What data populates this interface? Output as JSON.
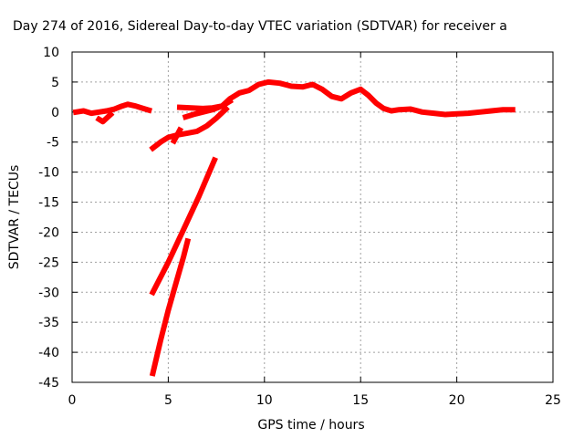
{
  "chart_data": {
    "type": "line",
    "title": "Day 274 of 2016, Sidereal Day-to-day VTEC variation (SDTVAR) for receiver a",
    "xlabel": "GPS time / hours",
    "ylabel": "SDTVAR / TECUs",
    "xlim": [
      0,
      25
    ],
    "ylim": [
      -45,
      10
    ],
    "xticks": [
      0,
      5,
      10,
      15,
      20,
      25
    ],
    "yticks": [
      10,
      5,
      0,
      -5,
      -10,
      -15,
      -20,
      -25,
      -30,
      -35,
      -40,
      -45
    ],
    "grid": true,
    "legend": "none",
    "color": "#ff0000",
    "series": [
      {
        "x": [
          0.2,
          0.6,
          1.0,
          1.4,
          1.8,
          2.2,
          2.6,
          2.9,
          3.3,
          3.7,
          4.0
        ],
        "y": [
          0.0,
          0.2,
          -0.2,
          0.0,
          0.2,
          0.5,
          1.0,
          1.3,
          1.0,
          0.6,
          0.3
        ]
      },
      {
        "x": [
          1.4,
          1.6,
          1.8,
          2.0
        ],
        "y": [
          -1.2,
          -1.6,
          -1.0,
          -0.4
        ]
      },
      {
        "x": [
          4.2,
          4.6,
          5.0,
          5.5,
          6.0,
          6.5,
          7.0,
          7.5,
          8.0
        ],
        "y": [
          -6.0,
          -5.0,
          -4.2,
          -3.8,
          -3.5,
          -3.2,
          -2.3,
          -1.0,
          0.5
        ]
      },
      {
        "x": [
          5.3,
          5.6
        ],
        "y": [
          -4.8,
          -3.0
        ]
      },
      {
        "x": [
          5.6,
          6.2,
          6.8,
          7.3,
          7.8,
          8.2,
          8.7,
          9.2,
          9.7,
          10.2,
          10.8,
          11.4,
          12.0,
          12.5,
          13.0,
          13.5,
          14.0,
          14.5,
          15.0,
          15.4,
          15.8,
          16.2,
          16.6,
          17.0,
          17.6,
          18.2,
          18.8,
          19.4,
          20.0,
          20.6,
          21.2,
          21.8,
          22.4,
          22.9
        ],
        "y": [
          0.8,
          0.7,
          0.6,
          0.7,
          1.0,
          2.2,
          3.2,
          3.6,
          4.6,
          5.0,
          4.8,
          4.3,
          4.2,
          4.6,
          3.8,
          2.6,
          2.2,
          3.2,
          3.8,
          2.8,
          1.5,
          0.6,
          0.2,
          0.4,
          0.5,
          0.0,
          -0.2,
          -0.4,
          -0.3,
          -0.2,
          0.0,
          0.2,
          0.4,
          0.4
        ]
      },
      {
        "x": [
          5.9,
          6.3,
          6.8,
          7.3,
          7.8,
          8.2
        ],
        "y": [
          -0.8,
          -0.4,
          0.0,
          0.4,
          1.0,
          1.8
        ]
      },
      {
        "x": [
          4.2,
          5.0,
          5.8,
          6.6,
          7.4
        ],
        "y": [
          -30.0,
          -25.0,
          -19.5,
          -14.0,
          -8.0
        ]
      },
      {
        "x": [
          4.2,
          4.6,
          5.0,
          5.4,
          5.8,
          6.0
        ],
        "y": [
          -43.5,
          -38.0,
          -33.0,
          -28.5,
          -24.0,
          -21.5
        ]
      }
    ]
  }
}
